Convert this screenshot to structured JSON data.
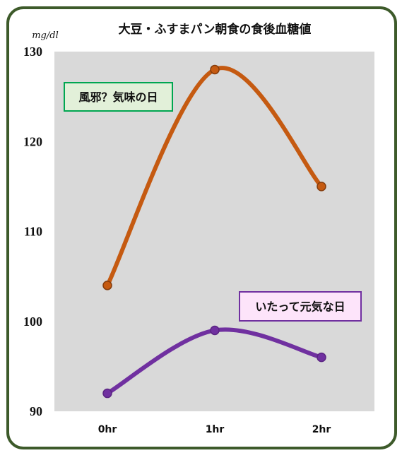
{
  "chart_data": {
    "type": "line",
    "title": "大豆・ふすまパン朝食の食後血糖値",
    "ylabel": "mg/dl",
    "xlabel": "",
    "categories": [
      "0hr",
      "1hr",
      "2hr"
    ],
    "ylim": [
      90,
      130
    ],
    "yticks": [
      90,
      100,
      110,
      120,
      130
    ],
    "grid": false,
    "smooth": true,
    "plot_background": "#d9d9d9",
    "series": [
      {
        "name": "風邪？気味の日",
        "values": [
          104,
          128,
          115
        ],
        "color": "#c55a11",
        "marker_fill": "#c55a11",
        "marker_stroke": "#843c0c",
        "label_fill": "#e2f0d9",
        "label_border": "#00a651"
      },
      {
        "name": "いたって元気な日",
        "values": [
          92,
          99,
          96
        ],
        "color": "#7030a0",
        "marker_fill": "#7030a0",
        "marker_stroke": "#5b2583",
        "label_fill": "#fde4fa",
        "label_border": "#7030a0"
      }
    ]
  },
  "frame": {
    "border_color": "#3d5a2a"
  }
}
